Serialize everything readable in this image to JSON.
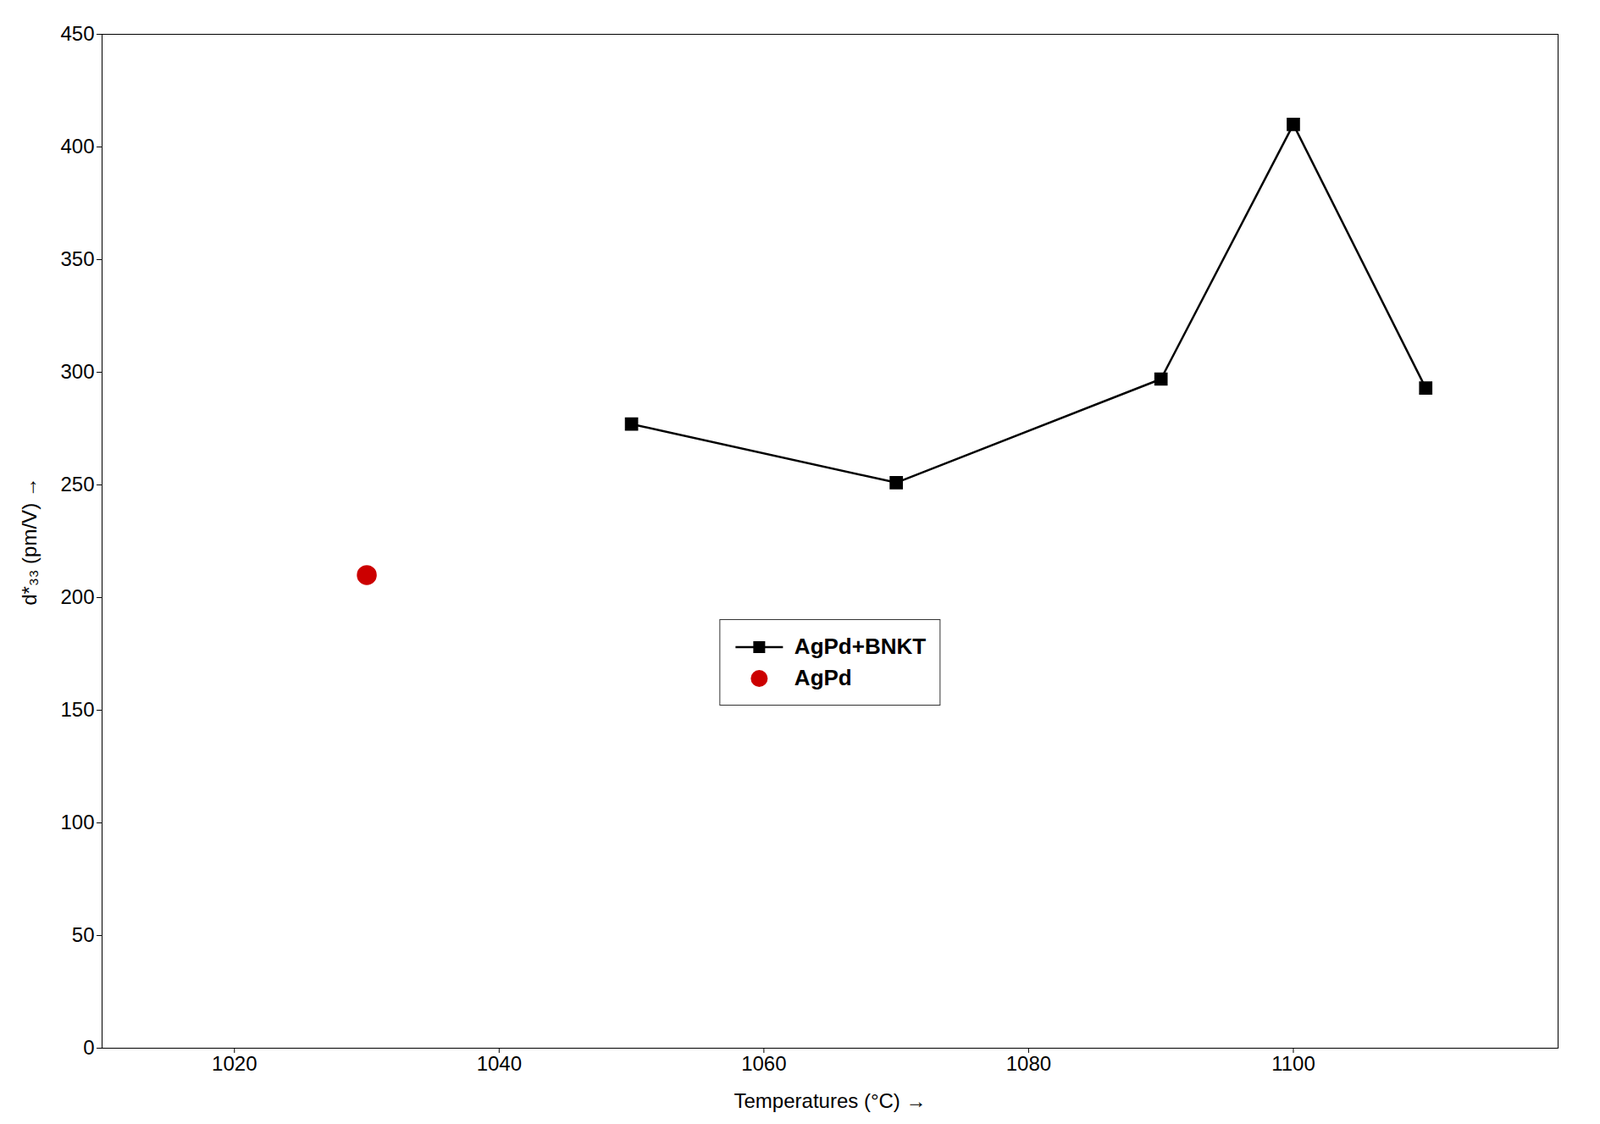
{
  "chart_data": {
    "type": "line",
    "xlabel": "Temperatures (°C)",
    "ylabel": "d*₃₃ (pm/V)",
    "series": [
      {
        "name": "AgPd+BNKT",
        "color": "#000000",
        "marker": "square",
        "line_style": "solid",
        "x": [
          1050,
          1070,
          1090,
          1100,
          1110
        ],
        "values": [
          277,
          251,
          297,
          410,
          293
        ]
      },
      {
        "name": "AgPd",
        "type": "scatter",
        "color": "#cc0000",
        "marker": "circle",
        "x": [
          1030
        ],
        "values": [
          210
        ]
      }
    ],
    "xlim": [
      1010,
      1120
    ],
    "ylim": [
      0,
      450
    ],
    "xticks": [
      1020,
      1040,
      1060,
      1080,
      1100
    ],
    "yticks": [
      0,
      50,
      100,
      150,
      200,
      250,
      300,
      350,
      400,
      450
    ],
    "legend": "center",
    "grid": false
  }
}
